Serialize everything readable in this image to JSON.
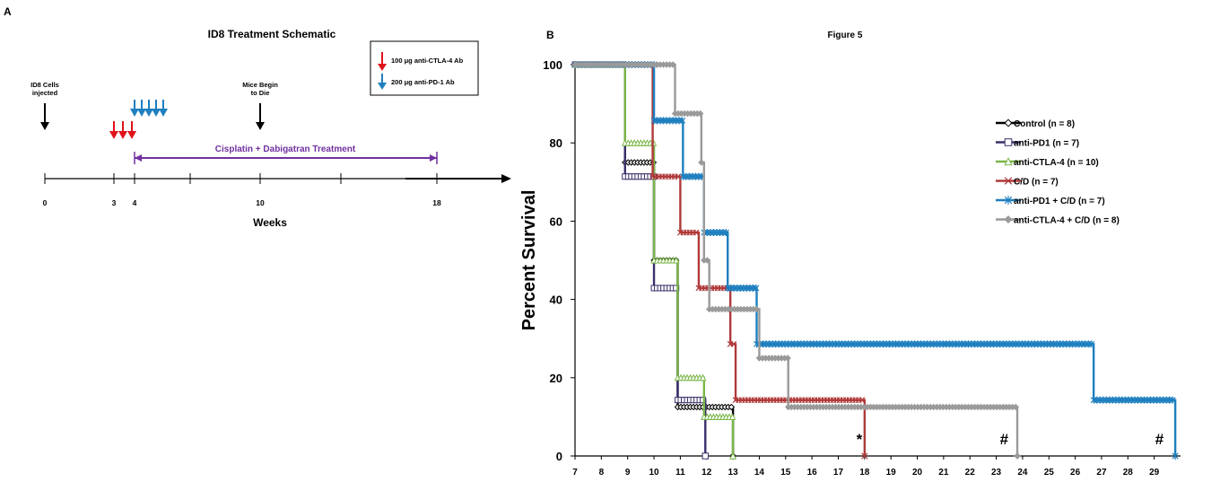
{
  "panel_a": {
    "letter": "A",
    "title": "ID8 Treatment Schematic",
    "legend": {
      "ctla4": {
        "label": "100 μg anti-CTLA-4  Ab",
        "color": "#e0131b"
      },
      "pd1": {
        "label": "200 μg anti-PD-1  Ab",
        "color": "#1f7fbf"
      }
    },
    "annotations": {
      "cells_injected": [
        "ID8 Cells",
        "injected"
      ],
      "mice_die": [
        "Mice Begin",
        "to Die"
      ],
      "treatment": "Cisplatin + Dabigatran Treatment",
      "treatment_color": "#7030a0"
    },
    "timeline": {
      "ticks": [
        "0",
        "3",
        "4",
        "10",
        "18"
      ],
      "xlabel": "Weeks"
    }
  },
  "panel_b": {
    "letter": "B"
  },
  "chart_data": {
    "type": "line",
    "subtype": "kaplan-meier step",
    "title": "Figure 5",
    "xlabel": "",
    "ylabel": "Percent  Survival",
    "xlim": [
      7,
      30
    ],
    "ylim": [
      0,
      100
    ],
    "x_ticks": [
      "7",
      "8",
      "9",
      "10",
      "11",
      "12",
      "13",
      "14",
      "15",
      "16",
      "17",
      "18",
      "19",
      "20",
      "21",
      "22",
      "23",
      "24",
      "25",
      "26",
      "27",
      "28",
      "29"
    ],
    "y_ticks": [
      "0",
      "20",
      "40",
      "60",
      "80",
      "100"
    ],
    "legend_position": "right",
    "series": [
      {
        "name": "Control (n = 8)",
        "color": "#000000",
        "marker": "diamond",
        "steps": [
          [
            7,
            100
          ],
          [
            8.9,
            75
          ],
          [
            10,
            50
          ],
          [
            10.9,
            12.5
          ],
          [
            13,
            0
          ]
        ],
        "end": 13
      },
      {
        "name": "anti-PD1 (n = 7)",
        "color": "#3b2f6b",
        "marker": "square",
        "steps": [
          [
            7,
            100
          ],
          [
            8.9,
            71.4
          ],
          [
            10,
            42.9
          ],
          [
            10.9,
            14.3
          ],
          [
            11.95,
            0
          ]
        ],
        "end": 11.95
      },
      {
        "name": "anti-CTLA-4 (n = 10)",
        "color": "#7ab648",
        "marker": "triangle",
        "steps": [
          [
            7,
            100
          ],
          [
            8.9,
            80
          ],
          [
            10,
            50
          ],
          [
            10.9,
            20
          ],
          [
            11.9,
            10
          ],
          [
            13,
            0
          ]
        ],
        "end": 13
      },
      {
        "name": "C/D (n = 7)",
        "color": "#b03a3a",
        "marker": "x",
        "steps": [
          [
            7,
            100
          ],
          [
            9.95,
            71.4
          ],
          [
            11,
            57.1
          ],
          [
            11.7,
            42.9
          ],
          [
            12.9,
            28.6
          ],
          [
            13.1,
            14.3
          ],
          [
            18,
            0
          ]
        ],
        "end": 18
      },
      {
        "name": "anti-PD1 + C/D (n = 7)",
        "color": "#1f7fbf",
        "marker": "star",
        "steps": [
          [
            7,
            100
          ],
          [
            10,
            85.7
          ],
          [
            11.1,
            71.4
          ],
          [
            11.9,
            57.1
          ],
          [
            12.8,
            42.9
          ],
          [
            13.9,
            28.6
          ],
          [
            26.7,
            14.3
          ],
          [
            29.8,
            0
          ]
        ],
        "end": 29.8
      },
      {
        "name": "anti-CTLA-4 + C/D (n = 8)",
        "color": "#9a9a9a",
        "marker": "diamond",
        "steps": [
          [
            7,
            100
          ],
          [
            10.8,
            87.5
          ],
          [
            11.8,
            75
          ],
          [
            11.9,
            50
          ],
          [
            12.1,
            37.5
          ],
          [
            14,
            25
          ],
          [
            15.1,
            12.5
          ],
          [
            23.8,
            0
          ]
        ],
        "end": 23.8
      }
    ],
    "annotations": [
      {
        "text": "*",
        "x": 17.8,
        "y": 3
      },
      {
        "text": "#",
        "x": 23.3,
        "y": 3
      },
      {
        "text": "#",
        "x": 29.2,
        "y": 3
      }
    ]
  }
}
